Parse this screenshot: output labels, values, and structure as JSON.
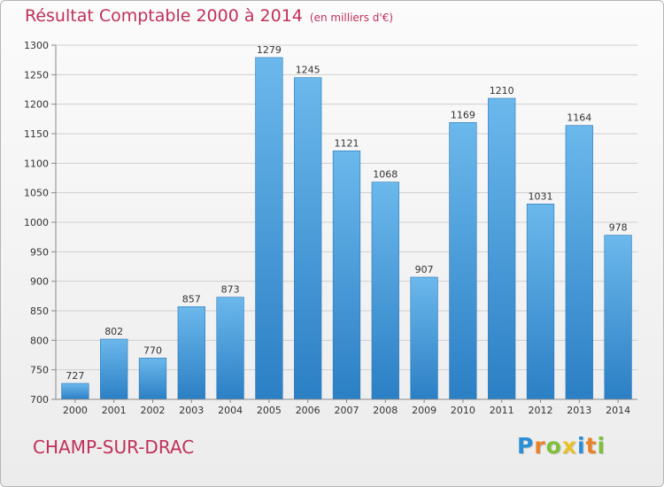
{
  "header": {
    "title": "Résultat Comptable 2000 à 2014",
    "subtitle": "(en milliers d'€)"
  },
  "footer": {
    "location": "CHAMP-SUR-DRAC",
    "logo_letters": [
      "P",
      "r",
      "o",
      "x",
      "i",
      "t",
      "i"
    ],
    "logo_colors": [
      "#2a8fd6",
      "#e8822a",
      "#7fbf3a",
      "#e8c12a",
      "#2a8fd6",
      "#e8822a",
      "#7fbf3a"
    ]
  },
  "colors": {
    "accent": "#c0305a",
    "bar_top": "#6bb8ec",
    "bar_bottom": "#2b7fc4"
  },
  "chart_data": {
    "type": "bar",
    "title": "Résultat Comptable 2000 à 2014",
    "subtitle": "(en milliers d'€)",
    "categories": [
      "2000",
      "2001",
      "2002",
      "2003",
      "2004",
      "2005",
      "2006",
      "2007",
      "2008",
      "2009",
      "2010",
      "2011",
      "2012",
      "2013",
      "2014"
    ],
    "values": [
      727,
      802,
      770,
      857,
      873,
      1279,
      1245,
      1121,
      1068,
      907,
      1169,
      1210,
      1031,
      1164,
      978
    ],
    "ylim": [
      700,
      1300
    ],
    "yticks": [
      700,
      750,
      800,
      850,
      900,
      950,
      1000,
      1050,
      1100,
      1150,
      1200,
      1250,
      1300
    ],
    "grid": true,
    "legend": "none"
  }
}
